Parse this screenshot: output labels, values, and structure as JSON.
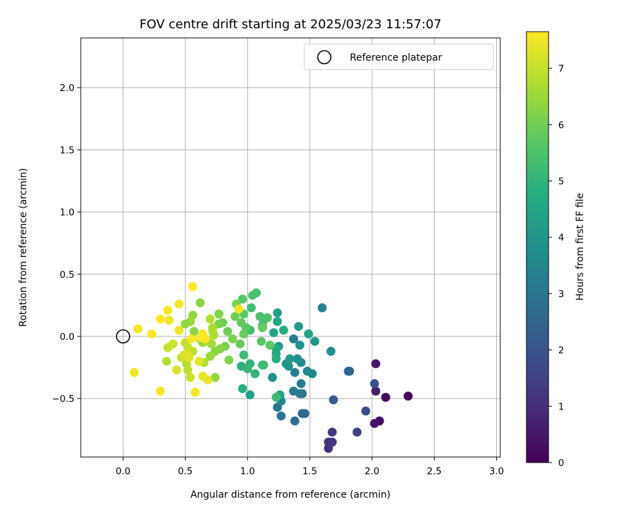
{
  "chart_data": {
    "type": "scatter",
    "title": "FOV centre drift starting at 2025/03/23 11:57:07",
    "xlabel": "Angular distance from reference (arcmin)",
    "ylabel": "Rotation from reference (arcmin)",
    "xlim": [
      -0.34,
      3.03
    ],
    "ylim": [
      -0.97,
      2.4
    ],
    "xticks": [
      "0.0",
      "0.5",
      "1.0",
      "1.5",
      "2.0",
      "2.5",
      "3.0"
    ],
    "xtick_values": [
      0,
      0.5,
      1,
      1.5,
      2,
      2.5,
      3
    ],
    "yticks": [
      "−0.5",
      "0.0",
      "0.5",
      "1.0",
      "1.5",
      "2.0"
    ],
    "ytick_values": [
      -0.5,
      0,
      0.5,
      1,
      1.5,
      2
    ],
    "grid": true,
    "legend": {
      "position": "top-right",
      "entries": [
        "Reference platepar"
      ]
    },
    "reference_point": {
      "x": 0.0,
      "y": 0.0
    },
    "colorbar": {
      "label": "Hours from first FF file",
      "colormap": "viridis",
      "range": [
        0,
        7.65
      ],
      "ticks": [
        "0",
        "1",
        "2",
        "3",
        "4",
        "5",
        "6",
        "7"
      ],
      "tick_values": [
        0,
        1,
        2,
        3,
        4,
        5,
        6,
        7
      ]
    },
    "points": [
      [
        2.29,
        -0.48,
        0.1
      ],
      [
        2.11,
        -0.49,
        0.2
      ],
      [
        2.06,
        -0.68,
        0.3
      ],
      [
        2.02,
        -0.7,
        0.4
      ],
      [
        2.03,
        -0.22,
        0.5
      ],
      [
        2.03,
        -0.44,
        0.6
      ],
      [
        1.65,
        -0.9,
        1.0
      ],
      [
        1.65,
        -0.85,
        1.1
      ],
      [
        1.68,
        -0.85,
        1.2
      ],
      [
        1.68,
        -0.77,
        1.3
      ],
      [
        1.88,
        -0.77,
        1.5
      ],
      [
        1.95,
        -0.6,
        1.8
      ],
      [
        2.02,
        -0.38,
        2.0
      ],
      [
        1.69,
        -0.51,
        2.2
      ],
      [
        1.81,
        -0.28,
        2.4
      ],
      [
        1.82,
        -0.28,
        2.5
      ],
      [
        1.44,
        -0.62,
        2.6
      ],
      [
        1.46,
        -0.62,
        2.7
      ],
      [
        1.38,
        -0.68,
        2.8
      ],
      [
        1.27,
        -0.64,
        2.9
      ],
      [
        1.24,
        -0.57,
        3.0
      ],
      [
        1.42,
        -0.46,
        3.0
      ],
      [
        1.44,
        -0.46,
        3.1
      ],
      [
        1.37,
        -0.44,
        3.1
      ],
      [
        1.43,
        -0.38,
        3.2
      ],
      [
        1.38,
        -0.29,
        3.3
      ],
      [
        1.27,
        -0.52,
        3.4
      ],
      [
        1.26,
        -0.48,
        3.5
      ],
      [
        1.37,
        -0.02,
        3.2
      ],
      [
        1.6,
        0.23,
        3.4
      ],
      [
        1.48,
        -0.28,
        3.6
      ],
      [
        1.52,
        -0.3,
        3.6
      ],
      [
        1.43,
        -0.21,
        3.7
      ],
      [
        1.4,
        -0.18,
        3.8
      ],
      [
        1.67,
        -0.12,
        3.8
      ],
      [
        1.42,
        -0.07,
        3.9
      ],
      [
        1.54,
        -0.04,
        4.0
      ],
      [
        1.33,
        -0.24,
        3.9
      ],
      [
        1.31,
        -0.22,
        4.0
      ],
      [
        1.34,
        -0.18,
        4.1
      ],
      [
        1.25,
        -0.08,
        4.2
      ],
      [
        1.2,
        -0.33,
        3.9
      ],
      [
        1.41,
        0.08,
        4.1
      ],
      [
        1.49,
        0.02,
        4.4
      ],
      [
        1.24,
        0.19,
        4.3
      ],
      [
        1.24,
        0.12,
        4.5
      ],
      [
        1.21,
        0.03,
        4.5
      ],
      [
        1.29,
        0.05,
        4.6
      ],
      [
        1.23,
        -0.1,
        4.6
      ],
      [
        1.23,
        -0.14,
        4.7
      ],
      [
        1.23,
        -0.18,
        4.8
      ],
      [
        1.26,
        -0.47,
        4.4
      ],
      [
        1.23,
        -0.49,
        5.2
      ],
      [
        1.02,
        -0.47,
        4.4
      ],
      [
        0.96,
        -0.42,
        4.8
      ],
      [
        1.06,
        -0.3,
        5.0
      ],
      [
        1.02,
        -0.22,
        5.0
      ],
      [
        1.0,
        -0.26,
        5.1
      ],
      [
        0.95,
        -0.24,
        4.9
      ],
      [
        0.97,
        -0.15,
        5.2
      ],
      [
        1.12,
        -0.23,
        5.1
      ],
      [
        1.13,
        -0.23,
        5.2
      ],
      [
        1.02,
        0.05,
        5.2
      ],
      [
        1.12,
        0.09,
        5.3
      ],
      [
        1.13,
        0.13,
        5.4
      ],
      [
        1.1,
        0.16,
        5.4
      ],
      [
        1.16,
        0.15,
        5.5
      ],
      [
        1.03,
        0.23,
        5.3
      ],
      [
        1.04,
        0.33,
        5.5
      ],
      [
        1.07,
        0.35,
        5.4
      ],
      [
        0.96,
        0.3,
        5.6
      ],
      [
        0.97,
        0.18,
        5.7
      ],
      [
        1.11,
        -0.04,
        5.6
      ],
      [
        1.18,
        -0.07,
        5.7
      ],
      [
        1.12,
        0.07,
        5.8
      ],
      [
        0.99,
        0.07,
        5.7
      ],
      [
        0.95,
        0.11,
        5.8
      ],
      [
        0.97,
        0.02,
        5.9
      ],
      [
        0.94,
        -0.06,
        5.9
      ],
      [
        0.9,
        0.16,
        6.0
      ],
      [
        0.91,
        0.26,
        6.1
      ],
      [
        0.84,
        0.04,
        6.0
      ],
      [
        0.88,
        -0.02,
        6.1
      ],
      [
        0.8,
        0.11,
        6.0
      ],
      [
        0.77,
        0.1,
        6.1
      ],
      [
        0.77,
        0.18,
        6.2
      ],
      [
        0.82,
        -0.08,
        6.1
      ],
      [
        0.85,
        -0.19,
        6.2
      ],
      [
        0.78,
        -0.1,
        6.3
      ],
      [
        0.74,
        -0.12,
        6.3
      ],
      [
        0.74,
        -0.33,
        6.4
      ],
      [
        0.62,
        0.27,
        6.3
      ],
      [
        0.56,
        0.17,
        6.4
      ],
      [
        0.54,
        0.12,
        6.5
      ],
      [
        0.5,
        0.1,
        6.4
      ],
      [
        0.57,
        0.04,
        6.3
      ],
      [
        0.62,
        -0.02,
        6.4
      ],
      [
        0.64,
        -0.05,
        6.5
      ],
      [
        0.68,
        -0.04,
        6.6
      ],
      [
        0.7,
        -0.16,
        6.5
      ],
      [
        0.71,
        -0.06,
        6.6
      ],
      [
        0.73,
        0.01,
        6.7
      ],
      [
        0.72,
        0.04,
        6.8
      ],
      [
        0.72,
        0.07,
        6.7
      ],
      [
        0.7,
        0.14,
        6.8
      ],
      [
        0.65,
        -0.21,
        6.8
      ],
      [
        0.56,
        -0.12,
        6.9
      ],
      [
        0.52,
        -0.09,
        7.0
      ],
      [
        0.5,
        -0.05,
        7.0
      ],
      [
        0.47,
        -0.17,
        7.0
      ],
      [
        0.51,
        -0.22,
        6.8
      ],
      [
        0.52,
        -0.27,
        6.9
      ],
      [
        0.54,
        -0.33,
        7.1
      ],
      [
        0.35,
        -0.2,
        6.8
      ],
      [
        0.36,
        -0.09,
        7.0
      ],
      [
        0.4,
        -0.06,
        7.1
      ],
      [
        0.43,
        -0.27,
        7.2
      ],
      [
        0.49,
        -0.15,
        7.2
      ],
      [
        0.51,
        -0.14,
        7.3
      ],
      [
        0.53,
        -0.17,
        7.3
      ],
      [
        0.61,
        -0.2,
        7.3
      ],
      [
        0.64,
        -0.32,
        7.4
      ],
      [
        0.68,
        -0.35,
        7.4
      ],
      [
        0.58,
        -0.45,
        7.5
      ],
      [
        0.3,
        -0.44,
        7.5
      ],
      [
        0.09,
        -0.29,
        7.5
      ],
      [
        0.12,
        0.06,
        7.5
      ],
      [
        0.23,
        0.02,
        7.6
      ],
      [
        0.3,
        0.14,
        7.6
      ],
      [
        0.36,
        0.21,
        7.6
      ],
      [
        0.37,
        0.13,
        7.5
      ],
      [
        0.45,
        0.26,
        7.6
      ],
      [
        0.45,
        0.05,
        7.5
      ],
      [
        0.56,
        0.4,
        7.6
      ],
      [
        0.55,
        -0.02,
        7.6
      ],
      [
        0.62,
        -0.01,
        7.6
      ],
      [
        0.64,
        0.02,
        7.6
      ],
      [
        0.66,
        -0.02,
        7.6
      ],
      [
        0.93,
        0.22,
        7.5
      ]
    ]
  }
}
